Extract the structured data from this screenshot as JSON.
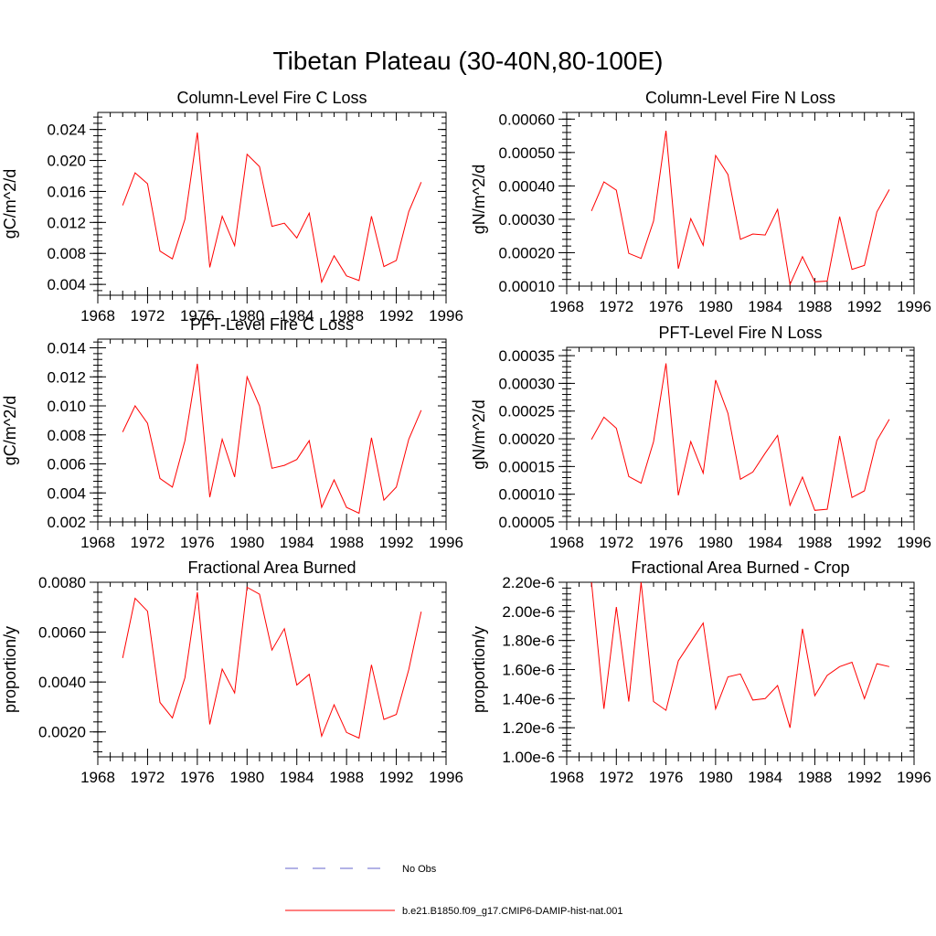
{
  "title": "Tibetan Plateau (30-40N,80-100E)",
  "legend": {
    "placement": "bottom-center",
    "entries": [
      {
        "label": "No Obs",
        "color": "#6666cc",
        "style": "dashed"
      },
      {
        "label": "b.e21.B1850.f09_g17.CMIP6-DAMIP-hist-nat.001",
        "color": "#ff0000",
        "style": "solid"
      }
    ]
  },
  "chart_data": [
    {
      "type": "line",
      "title": "Column-Level Fire C Loss",
      "ylabel": "gC/m^2/d",
      "xlim": [
        1968,
        1996
      ],
      "ylim": [
        0.0026,
        0.0262
      ],
      "xticks": [
        "1968",
        "1972",
        "1976",
        "1980",
        "1984",
        "1988",
        "1992",
        "1996"
      ],
      "yticks": [
        {
          "v": 0.004,
          "label": "0.004"
        },
        {
          "v": 0.008,
          "label": "0.008"
        },
        {
          "v": 0.012,
          "label": "0.012"
        },
        {
          "v": 0.016,
          "label": "0.016"
        },
        {
          "v": 0.02,
          "label": "0.020"
        },
        {
          "v": 0.024,
          "label": "0.024"
        }
      ],
      "color": "#ff0000",
      "x": [
        1970,
        1971,
        1972,
        1973,
        1974,
        1975,
        1976,
        1977,
        1978,
        1979,
        1980,
        1981,
        1982,
        1983,
        1984,
        1985,
        1986,
        1987,
        1988,
        1989,
        1990,
        1991,
        1992,
        1993,
        1994
      ],
      "y": [
        0.0142,
        0.0184,
        0.017,
        0.0083,
        0.0073,
        0.0124,
        0.0236,
        0.0062,
        0.0128,
        0.009,
        0.0208,
        0.0192,
        0.0115,
        0.0119,
        0.01,
        0.0132,
        0.0043,
        0.0077,
        0.0051,
        0.0045,
        0.0128,
        0.0063,
        0.0071,
        0.0134,
        0.0172
      ]
    },
    {
      "type": "line",
      "title": "Column-Level Fire N Loss",
      "ylabel": "gN/m^2/d",
      "xlim": [
        1968,
        1996
      ],
      "ylim": [
        0.0001,
        0.00062
      ],
      "xticks": [
        "1968",
        "1972",
        "1976",
        "1980",
        "1984",
        "1988",
        "1992",
        "1996"
      ],
      "yticks": [
        {
          "v": 0.0001,
          "label": "0.00010"
        },
        {
          "v": 0.0002,
          "label": "0.00020"
        },
        {
          "v": 0.0003,
          "label": "0.00030"
        },
        {
          "v": 0.0004,
          "label": "0.00040"
        },
        {
          "v": 0.0005,
          "label": "0.00050"
        },
        {
          "v": 0.0006,
          "label": "0.00060"
        }
      ],
      "color": "#ff0000",
      "x": [
        1970,
        1971,
        1972,
        1973,
        1974,
        1975,
        1976,
        1977,
        1978,
        1979,
        1980,
        1981,
        1982,
        1983,
        1984,
        1985,
        1986,
        1987,
        1988,
        1989,
        1990,
        1991,
        1992,
        1993,
        1994
      ],
      "y": [
        0.000325,
        0.000412,
        0.000387,
        0.000198,
        0.000183,
        0.000295,
        0.000565,
        0.000152,
        0.000302,
        0.000222,
        0.000491,
        0.000434,
        0.00024,
        0.000256,
        0.000253,
        0.00033,
        0.000105,
        0.000188,
        0.000113,
        0.000115,
        0.000308,
        0.00015,
        0.000162,
        0.000322,
        0.000389
      ]
    },
    {
      "type": "line",
      "title": "PFT-Level Fire C Loss",
      "ylabel": "gC/m^2/d",
      "xlim": [
        1968,
        1996
      ],
      "ylim": [
        0.002,
        0.0146
      ],
      "xticks": [
        "1968",
        "1972",
        "1976",
        "1980",
        "1984",
        "1988",
        "1992",
        "1996"
      ],
      "yticks": [
        {
          "v": 0.002,
          "label": "0.002"
        },
        {
          "v": 0.004,
          "label": "0.004"
        },
        {
          "v": 0.006,
          "label": "0.006"
        },
        {
          "v": 0.008,
          "label": "0.008"
        },
        {
          "v": 0.01,
          "label": "0.010"
        },
        {
          "v": 0.012,
          "label": "0.012"
        },
        {
          "v": 0.014,
          "label": "0.014"
        }
      ],
      "color": "#ff0000",
      "x": [
        1970,
        1971,
        1972,
        1973,
        1974,
        1975,
        1976,
        1977,
        1978,
        1979,
        1980,
        1981,
        1982,
        1983,
        1984,
        1985,
        1986,
        1987,
        1988,
        1989,
        1990,
        1991,
        1992,
        1993,
        1994
      ],
      "y": [
        0.0082,
        0.01,
        0.0088,
        0.005,
        0.0044,
        0.0076,
        0.0129,
        0.0037,
        0.0077,
        0.0051,
        0.012,
        0.01,
        0.0057,
        0.0059,
        0.0063,
        0.0076,
        0.003,
        0.0049,
        0.003,
        0.0026,
        0.0078,
        0.0035,
        0.0044,
        0.0077,
        0.0097
      ]
    },
    {
      "type": "line",
      "title": "PFT-Level Fire N Loss",
      "ylabel": "gN/m^2/d",
      "xlim": [
        1968,
        1996
      ],
      "ylim": [
        5e-05,
        0.000365
      ],
      "xticks": [
        "1968",
        "1972",
        "1976",
        "1980",
        "1984",
        "1988",
        "1992",
        "1996"
      ],
      "yticks": [
        {
          "v": 5e-05,
          "label": "0.00005"
        },
        {
          "v": 0.0001,
          "label": "0.00010"
        },
        {
          "v": 0.00015,
          "label": "0.00015"
        },
        {
          "v": 0.0002,
          "label": "0.00020"
        },
        {
          "v": 0.00025,
          "label": "0.00025"
        },
        {
          "v": 0.0003,
          "label": "0.00030"
        },
        {
          "v": 0.00035,
          "label": "0.00035"
        }
      ],
      "color": "#ff0000",
      "x": [
        1970,
        1971,
        1972,
        1973,
        1974,
        1975,
        1976,
        1977,
        1978,
        1979,
        1980,
        1981,
        1982,
        1983,
        1984,
        1985,
        1986,
        1987,
        1988,
        1989,
        1990,
        1991,
        1992,
        1993,
        1994
      ],
      "y": [
        0.000199,
        0.000239,
        0.000219,
        0.000132,
        0.00012,
        0.000195,
        0.000336,
        9.8e-05,
        0.000195,
        0.000138,
        0.000306,
        0.000246,
        0.000127,
        0.00014,
        0.000174,
        0.000206,
        8e-05,
        0.000131,
        7.1e-05,
        7.3e-05,
        0.000205,
        9.4e-05,
        0.000106,
        0.000197,
        0.000235
      ]
    },
    {
      "type": "line",
      "title": "Fractional Area Burned",
      "ylabel": "proportion/y",
      "xlim": [
        1968,
        1996
      ],
      "ylim": [
        0.001,
        0.008
      ],
      "xticks": [
        "1968",
        "1972",
        "1976",
        "1980",
        "1984",
        "1988",
        "1992",
        "1996"
      ],
      "yticks": [
        {
          "v": 0.002,
          "label": "0.0020"
        },
        {
          "v": 0.004,
          "label": "0.0040"
        },
        {
          "v": 0.006,
          "label": "0.0060"
        },
        {
          "v": 0.008,
          "label": "0.0080"
        }
      ],
      "color": "#ff0000",
      "x": [
        1970,
        1971,
        1972,
        1973,
        1974,
        1975,
        1976,
        1977,
        1978,
        1979,
        1980,
        1981,
        1982,
        1983,
        1984,
        1985,
        1986,
        1987,
        1988,
        1989,
        1990,
        1991,
        1992,
        1993,
        1994
      ],
      "y": [
        0.00496,
        0.00736,
        0.00684,
        0.00318,
        0.00256,
        0.00417,
        0.0076,
        0.0023,
        0.00452,
        0.00356,
        0.0078,
        0.00752,
        0.00528,
        0.00614,
        0.00388,
        0.00431,
        0.00183,
        0.00309,
        0.00198,
        0.00175,
        0.00469,
        0.0025,
        0.0027,
        0.0045,
        0.00682
      ]
    },
    {
      "type": "line",
      "title": "Fractional Area Burned - Crop",
      "ylabel": "proportion/y",
      "xlim": [
        1968,
        1996
      ],
      "ylim": [
        1e-06,
        2.2e-06
      ],
      "xticks": [
        "1968",
        "1972",
        "1976",
        "1980",
        "1984",
        "1988",
        "1992",
        "1996"
      ],
      "yticks": [
        {
          "v": 1e-06,
          "label": "1.00e-6"
        },
        {
          "v": 1.2e-06,
          "label": "1.20e-6"
        },
        {
          "v": 1.4e-06,
          "label": "1.40e-6"
        },
        {
          "v": 1.6e-06,
          "label": "1.60e-6"
        },
        {
          "v": 1.8e-06,
          "label": "1.80e-6"
        },
        {
          "v": 2e-06,
          "label": "2.00e-6"
        },
        {
          "v": 2.2e-06,
          "label": "2.20e-6"
        }
      ],
      "color": "#ff0000",
      "x": [
        1970,
        1971,
        1972,
        1973,
        1974,
        1975,
        1976,
        1977,
        1978,
        1979,
        1980,
        1981,
        1982,
        1983,
        1984,
        1985,
        1986,
        1987,
        1988,
        1989,
        1990,
        1991,
        1992,
        1993,
        1994
      ],
      "y": [
        2.2e-06,
        1.33e-06,
        2.03e-06,
        1.38e-06,
        2.2e-06,
        1.38e-06,
        1.32e-06,
        1.66e-06,
        1.79e-06,
        1.92e-06,
        1.33e-06,
        1.55e-06,
        1.57e-06,
        1.39e-06,
        1.4e-06,
        1.49e-06,
        1.2e-06,
        1.88e-06,
        1.42e-06,
        1.56e-06,
        1.62e-06,
        1.65e-06,
        1.4e-06,
        1.64e-06,
        1.62e-06
      ]
    }
  ]
}
